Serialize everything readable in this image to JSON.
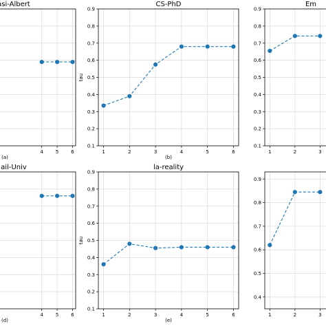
{
  "chart_data": [
    {
      "type": "line",
      "title": "asi-Albert",
      "subcaption": "(a)",
      "x": [
        4,
        5,
        6
      ],
      "series": [
        {
          "values": [
            0.59,
            0.59,
            0.59
          ]
        }
      ],
      "xticks": [
        "4",
        "5",
        "6"
      ],
      "yticks": [],
      "ylabel": "",
      "color": "#1f77b4",
      "grid": true
    },
    {
      "type": "line",
      "title": "CS-PhD",
      "subcaption": "(b)",
      "x": [
        1,
        2,
        3,
        4,
        5,
        6
      ],
      "series": [
        {
          "values": [
            0.335,
            0.39,
            0.575,
            0.68,
            0.68,
            0.68
          ]
        }
      ],
      "xticks": [
        "1",
        "2",
        "3",
        "4",
        "5",
        "6"
      ],
      "yticks": [
        "0.1",
        "0.2",
        "0.3",
        "0.4",
        "0.5",
        "0.6",
        "0.7",
        "0.8",
        "0.9"
      ],
      "ylabel": "tau",
      "ylim": [
        0.1,
        0.9
      ],
      "color": "#1f77b4",
      "grid": true
    },
    {
      "type": "line",
      "title": "Em",
      "subcaption": "",
      "x": [
        1,
        2,
        3
      ],
      "series": [
        {
          "values": [
            0.655,
            0.742,
            0.742
          ]
        }
      ],
      "xticks": [
        "1",
        "2",
        "3"
      ],
      "yticks": [
        "0.1",
        "0.2",
        "0.3",
        "0.4",
        "0.5",
        "0.6",
        "0.7",
        "0.8",
        "0.9"
      ],
      "ylabel": "",
      "ylim": [
        0.1,
        0.9
      ],
      "color": "#1f77b4",
      "grid": true
    },
    {
      "type": "line",
      "title": "ail-Univ",
      "subcaption": "(d)",
      "x": [
        4,
        5,
        6
      ],
      "series": [
        {
          "values": [
            0.76,
            0.76,
            0.76
          ]
        }
      ],
      "xticks": [
        "4",
        "5",
        "6"
      ],
      "yticks": [],
      "ylabel": "",
      "color": "#1f77b4",
      "grid": true
    },
    {
      "type": "line",
      "title": "la-reality",
      "subcaption": "(e)",
      "x": [
        1,
        2,
        3,
        4,
        5,
        6
      ],
      "series": [
        {
          "values": [
            0.36,
            0.48,
            0.455,
            0.46,
            0.46,
            0.46
          ]
        }
      ],
      "xticks": [
        "1",
        "2",
        "3",
        "4",
        "5",
        "6"
      ],
      "yticks": [
        "0.1",
        "0.2",
        "0.3",
        "0.4",
        "0.5",
        "0.6",
        "0.7",
        "0.8",
        "0.9"
      ],
      "ylabel": "tau",
      "ylim": [
        0.1,
        0.9
      ],
      "color": "#1f77b4",
      "grid": true
    },
    {
      "type": "line",
      "title": "",
      "subcaption": "",
      "x": [
        1,
        2,
        3
      ],
      "series": [
        {
          "values": [
            0.62,
            0.845,
            0.845
          ]
        }
      ],
      "xticks": [
        "1",
        "2",
        "3"
      ],
      "yticks": [
        "0.4",
        "0.5",
        "0.6",
        "0.7",
        "0.8",
        "0.9"
      ],
      "ylabel": "",
      "ylim": [
        0.35,
        0.93
      ],
      "color": "#1f77b4",
      "grid": true
    }
  ]
}
